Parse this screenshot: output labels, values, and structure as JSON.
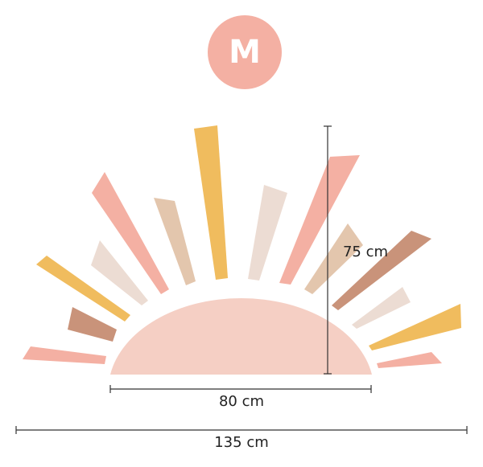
{
  "badge": {
    "label": "M"
  },
  "dimensions": {
    "height": "75 cm",
    "sun_width": "80 cm",
    "total_width": "135 cm"
  }
}
